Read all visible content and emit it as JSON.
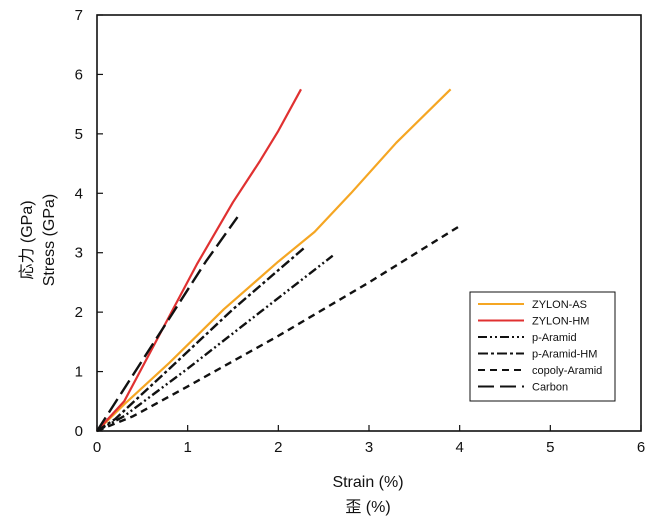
{
  "chart_data": {
    "type": "line",
    "xlabel": "Strain (%)",
    "xlabel_jp": "歪 (%)",
    "ylabel": "Stress (GPa)",
    "ylabel_jp": "応力 (GPa)",
    "xlim": [
      0,
      6
    ],
    "ylim": [
      0,
      7
    ],
    "xticks": [
      0,
      1,
      2,
      3,
      4,
      5,
      6
    ],
    "yticks": [
      0,
      1,
      2,
      3,
      4,
      5,
      6,
      7
    ],
    "grid": false,
    "legend_position": "lower-right",
    "series": [
      {
        "name": "ZYLON-AS",
        "color": "#f5a623",
        "dash": "solid",
        "x": [
          0,
          0.3,
          0.8,
          1.4,
          2.0,
          2.4,
          2.8,
          3.3,
          3.9
        ],
        "y": [
          0,
          0.45,
          1.15,
          2.05,
          2.85,
          3.35,
          4.0,
          4.85,
          5.75
        ]
      },
      {
        "name": "ZYLON-HM",
        "color": "#e03131",
        "dash": "solid",
        "x": [
          0,
          0.3,
          0.7,
          1.1,
          1.5,
          1.8,
          2.0,
          2.25
        ],
        "y": [
          0,
          0.5,
          1.65,
          2.8,
          3.85,
          4.55,
          5.05,
          5.75
        ]
      },
      {
        "name": "p-Aramid",
        "color": "#111111",
        "dash": "dashdotdot",
        "x": [
          0,
          0.3,
          1.0,
          1.8,
          2.6
        ],
        "y": [
          0,
          0.25,
          1.05,
          2.0,
          2.95
        ]
      },
      {
        "name": "p-Aramid-HM",
        "color": "#111111",
        "dash": "dashdot",
        "x": [
          0,
          0.2,
          0.8,
          1.5,
          2.3
        ],
        "y": [
          0,
          0.2,
          1.05,
          2.05,
          3.1
        ]
      },
      {
        "name": "copoly-Aramid",
        "color": "#111111",
        "dash": "dash",
        "x": [
          0,
          0.4,
          1.0,
          2.0,
          3.0,
          4.0
        ],
        "y": [
          0,
          0.25,
          0.75,
          1.6,
          2.5,
          3.45
        ]
      },
      {
        "name": "Carbon",
        "color": "#111111",
        "dash": "longdash",
        "x": [
          0,
          0.4,
          0.8,
          1.2,
          1.55
        ],
        "y": [
          0,
          0.95,
          1.9,
          2.85,
          3.6
        ]
      }
    ]
  }
}
